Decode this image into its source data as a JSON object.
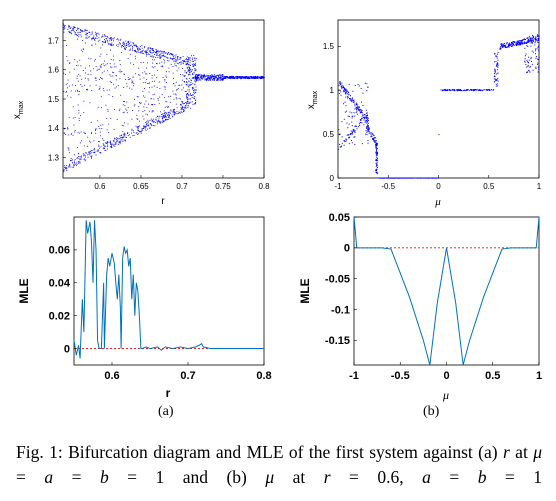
{
  "panels": {
    "a_top": {
      "ylabel": "x",
      "ylabel_sub": "max",
      "xlabel": "r",
      "xticks": [
        "0.6",
        "0.65",
        "0.7",
        "0.75",
        "0.8"
      ],
      "yticks": [
        "1.3",
        "1.4",
        "1.5",
        "1.6",
        "1.7"
      ],
      "xlim": [
        0.555,
        0.8
      ],
      "ylim": [
        1.23,
        1.77
      ]
    },
    "b_top": {
      "ylabel": "x",
      "ylabel_sub": "max",
      "xlabel": "μ",
      "xticks": [
        "-1",
        "-0.5",
        "0",
        "0.5",
        "1"
      ],
      "yticks": [
        "0",
        "0.5",
        "1",
        "1.5"
      ],
      "xlim": [
        -1.0,
        1.0
      ],
      "ylim": [
        0,
        1.8
      ]
    },
    "a_bottom": {
      "ylabel": "MLE",
      "xlabel": "r",
      "xticks": [
        "0.6",
        "0.7",
        "0.8"
      ],
      "yticks": [
        "0",
        "0.02",
        "0.04",
        "0.06"
      ],
      "xlim": [
        0.55,
        0.8
      ],
      "ylim": [
        -0.01,
        0.08
      ]
    },
    "b_bottom": {
      "ylabel": "MLE",
      "xlabel": "μ",
      "xticks": [
        "-1",
        "-0.5",
        "0",
        "0.5",
        "1"
      ],
      "yticks": [
        "0.05",
        "0",
        "-0.05",
        "-0.1",
        "-0.15"
      ],
      "xlim": [
        -1.0,
        1.0
      ],
      "ylim": [
        -0.19,
        0.05
      ]
    }
  },
  "panel_labels": {
    "a": "(a)",
    "b": "(b)"
  },
  "caption": {
    "prefix": "Fig. 1: Bifurcation diagram and MLE of the first system against (a) ",
    "v1": "r",
    "t1": " at ",
    "v2": "μ",
    "t2": " = ",
    "v3": "a",
    "t3": " = ",
    "v4": "b",
    "t4": " = 1 and (b) ",
    "v5": "μ",
    "t5": " at ",
    "v6": "r",
    "t6": " = 0.6, ",
    "v7": "a",
    "t7": " = ",
    "v8": "b",
    "t8": " = 1"
  },
  "colors": {
    "scatter": "#0000ff",
    "line": "#0072bd",
    "zero_line": "#ff0000"
  }
}
